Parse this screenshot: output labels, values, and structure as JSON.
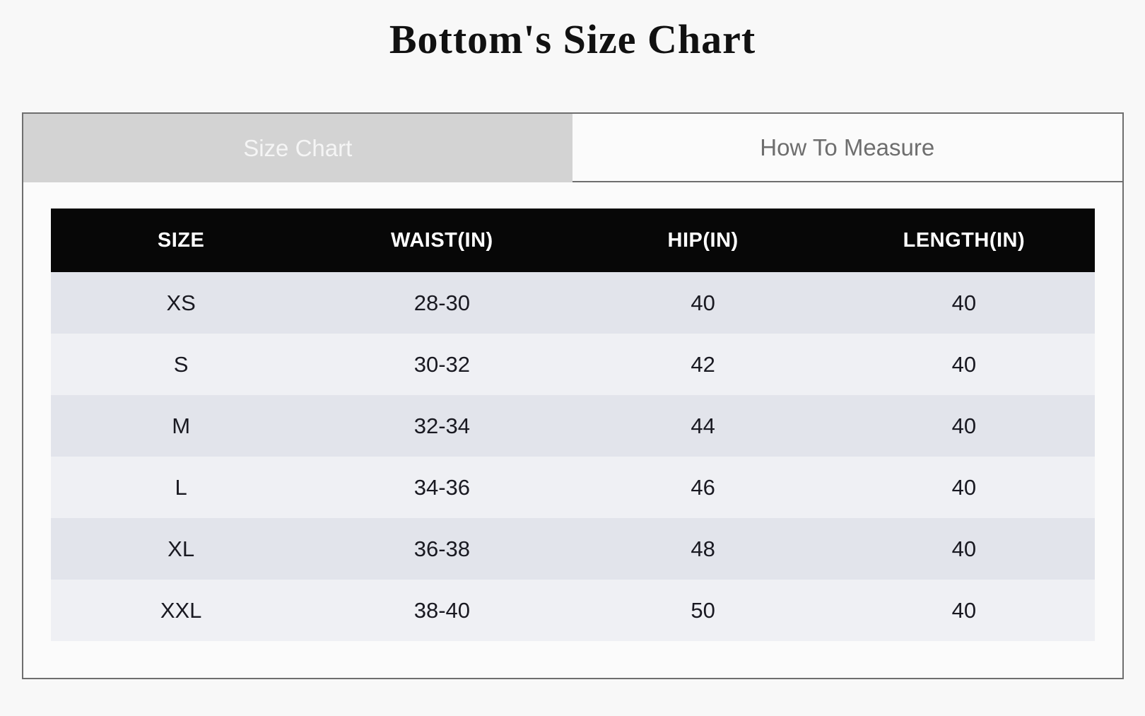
{
  "page": {
    "title": "Bottom's Size Chart"
  },
  "tabs": [
    {
      "label": "Size Chart",
      "active": true
    },
    {
      "label": "How To Measure",
      "active": false
    }
  ],
  "table": {
    "headers": [
      "SIZE",
      "WAIST(IN)",
      "HIP(IN)",
      "LENGTH(IN)"
    ],
    "rows": [
      [
        "XS",
        "28-30",
        "40",
        "40"
      ],
      [
        "S",
        "30-32",
        "42",
        "40"
      ],
      [
        "M",
        "32-34",
        "44",
        "40"
      ],
      [
        "L",
        "34-36",
        "46",
        "40"
      ],
      [
        "XL",
        "36-38",
        "48",
        "40"
      ],
      [
        "XXL",
        "38-40",
        "50",
        "40"
      ]
    ]
  },
  "colors": {
    "page_background": "#f8f8f8",
    "widget_background": "#fbfbfb",
    "widget_border": "#6e6e6e",
    "active_tab_background": "#d3d3d3",
    "active_tab_text": "#f5f5f5",
    "inactive_tab_text": "#6e6e6e",
    "table_header_background": "#070707",
    "table_header_text": "#ffffff",
    "row_odd": "#e2e4eb",
    "row_even": "#eff0f4",
    "cell_text": "#191921"
  }
}
